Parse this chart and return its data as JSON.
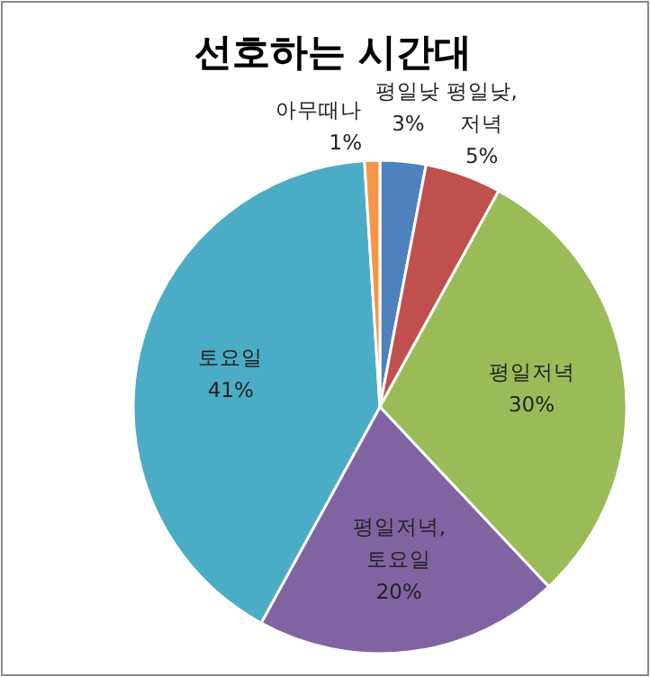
{
  "chart_data": {
    "type": "pie",
    "title": "선호하는 시간대",
    "categories": [
      "평일낮",
      "평일낮, 저녁",
      "평일저녁",
      "평일저녁, 토요일",
      "토요일",
      "아무때나"
    ],
    "values": [
      3,
      5,
      30,
      20,
      41,
      1
    ],
    "colors": [
      "#4f81bd",
      "#c0504d",
      "#9bbb59",
      "#8064a2",
      "#4bacc6",
      "#f79646"
    ],
    "value_labels": [
      "3%",
      "5%",
      "30%",
      "20%",
      "41%",
      "1%"
    ],
    "legend": false
  }
}
